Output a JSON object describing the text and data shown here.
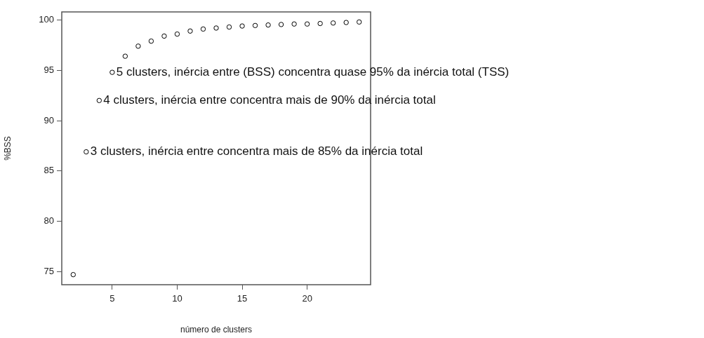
{
  "chart_data": {
    "type": "scatter",
    "xlabel": "número de clusters",
    "ylabel": "%BSS",
    "x": [
      2,
      3,
      4,
      5,
      6,
      7,
      8,
      9,
      10,
      11,
      12,
      13,
      14,
      15,
      16,
      17,
      18,
      19,
      20,
      21,
      22,
      23,
      24
    ],
    "series": [
      {
        "color": "#000000",
        "values": [
          74.7,
          86.9,
          92.0,
          94.8,
          96.4,
          97.4,
          97.9,
          98.4,
          98.6,
          98.9,
          99.1,
          99.2,
          99.3,
          99.4,
          99.45,
          99.5,
          99.55,
          99.6,
          99.6,
          99.65,
          99.7,
          99.75,
          99.8
        ]
      }
    ],
    "xlim": [
      1.12,
      24.88
    ],
    "xticks": [
      5,
      10,
      15,
      20
    ],
    "ylim": [
      73.7,
      100.8
    ],
    "yticks": [
      75,
      80,
      85,
      90,
      95,
      100
    ],
    "grid": false,
    "legend": false,
    "marker": "circle",
    "annotations": [
      {
        "text": "5 clusters, inércia entre (BSS) concentra quase 95% da inércia total (TSS)",
        "x": 5,
        "y": 94.8
      },
      {
        "text": "4 clusters, inércia entre concentra mais de 90% da inércia total",
        "x": 4,
        "y": 92.0
      },
      {
        "text": "3 clusters, inércia entre concentra mais de 85% da inércia total",
        "x": 3,
        "y": 86.9
      }
    ]
  }
}
